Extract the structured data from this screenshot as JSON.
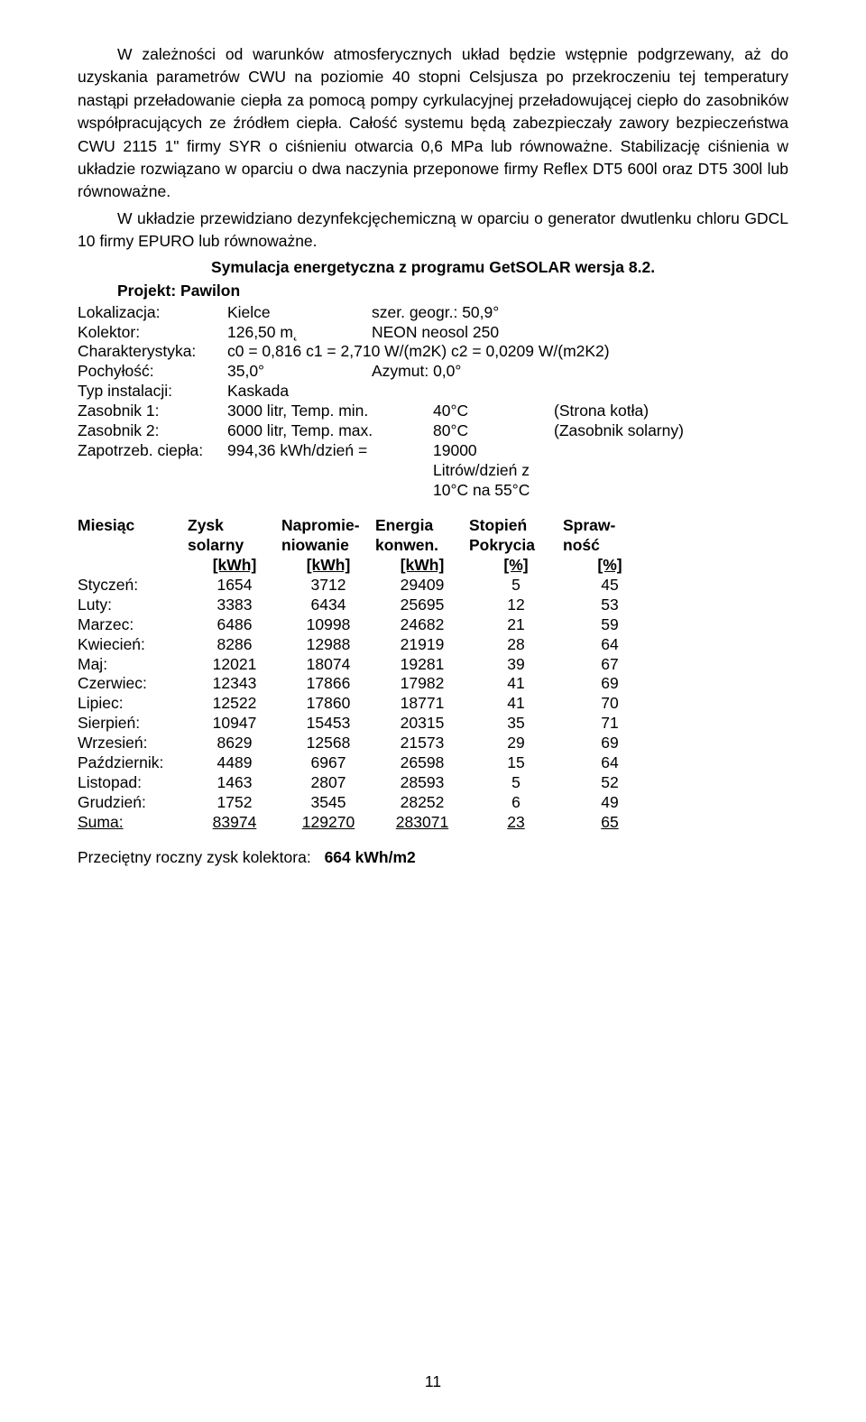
{
  "text": {
    "p1": "W zależności od warunków atmosferycznych układ będzie wstępnie podgrzewany, aż do uzyskania parametrów CWU na poziomie 40 stopni Celsjusza po przekroczeniu tej temperatury nastąpi przeładowanie ciepła za pomocą pompy cyrkulacyjnej przeładowującej ciepło do zasobników współpracujących ze źródłem ciepła. Całość systemu będą zabezpieczały zawory bezpieczeństwa CWU 2115 1\" firmy SYR o ciśnieniu otwarcia 0,6 MPa lub równoważne. Stabilizację ciśnienia w układzie rozwiązano w oparciu o dwa naczynia przeponowe  firmy Reflex DT5 600l oraz DT5 300l lub równoważne.",
    "p2": "W układzie przewidziano dezynfekcjęchemiczną w oparciu o generator dwutlenku chloru GDCL 10 firmy EPURO lub równoważne.",
    "sim_title": "Symulacja energetyczna z programu GetSOLAR wersja 8.2.",
    "project_label": "Projekt: Pawilon",
    "footer_label": "Przeciętny roczny zysk kolektora:",
    "footer_value": "664 kWh/m2",
    "page_number": "11"
  },
  "specs": [
    {
      "label": "Lokalizacja:",
      "c1": "Kielce",
      "c2": "szer. geogr.: 50,9°"
    },
    {
      "label": "Kolektor:",
      "c1": "126,50 m˛",
      "c2": "NEON neosol 250"
    },
    {
      "label": "Charakterystyka:",
      "c1": "c0 = 0,816",
      "c2": "c1 = 2,710 W/(m2K)   c2 = 0,0209 W/(m2K2)",
      "single": true
    },
    {
      "label": "Pochyłość:",
      "c1": "35,0°",
      "c2": "Azymut: 0,0°"
    },
    {
      "label": "Typ instalacji:",
      "c1": "Kaskada",
      "c2": ""
    },
    {
      "label": "Zasobnik 1:",
      "c1": "3000 litr, Temp. min.",
      "c2": "40°C",
      "c3": "(Strona kotła)",
      "wide": true
    },
    {
      "label": "Zasobnik 2:",
      "c1": "6000 litr, Temp. max.",
      "c2": "80°C",
      "c3": "(Zasobnik solarny)",
      "wide": true
    },
    {
      "label": "Zapotrzeb. ciepła:",
      "c1": "994,36 kWh/dzień   =",
      "c2": "19000 Litrów/dzień z  10°C na   55°C",
      "wide": true
    }
  ],
  "table": {
    "head1": [
      "Miesiąc",
      "Zysk",
      "Napromie-",
      "Energia",
      "Stopień",
      "Spraw-"
    ],
    "head2": [
      "",
      "solarny",
      "niowanie",
      "konwen.",
      "Pokrycia",
      "ność"
    ],
    "units": [
      "",
      "[kWh]",
      "[kWh]",
      "[kWh]",
      "[%]",
      "[%]"
    ],
    "rows": [
      [
        "Styczeń:",
        "1654",
        "3712",
        "29409",
        "5",
        "45"
      ],
      [
        "Luty:",
        "3383",
        "6434",
        "25695",
        "12",
        "53"
      ],
      [
        "Marzec:",
        "6486",
        "10998",
        "24682",
        "21",
        "59"
      ],
      [
        "Kwiecień:",
        "8286",
        "12988",
        "21919",
        "28",
        "64"
      ],
      [
        "Maj:",
        "12021",
        "18074",
        "19281",
        "39",
        "67"
      ],
      [
        "Czerwiec:",
        "12343",
        "17866",
        "17982",
        "41",
        "69"
      ],
      [
        "Lipiec:",
        "12522",
        "17860",
        "18771",
        "41",
        "70"
      ],
      [
        "Sierpień:",
        "10947",
        "15453",
        "20315",
        "35",
        "71"
      ],
      [
        "Wrzesień:",
        "8629",
        "12568",
        "21573",
        "29",
        "69"
      ],
      [
        "Październik:",
        "4489",
        "6967",
        "26598",
        "15",
        "64"
      ],
      [
        "Listopad:",
        "1463",
        "2807",
        "28593",
        "5",
        "52"
      ],
      [
        "Grudzień:",
        "1752",
        "3545",
        "28252",
        "6",
        "49"
      ]
    ],
    "sum": [
      "Suma:",
      "83974",
      "129270",
      "283071",
      "23",
      "65"
    ]
  }
}
